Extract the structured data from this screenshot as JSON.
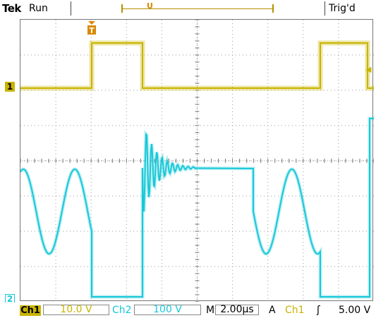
{
  "header": {
    "brand": "Tek",
    "run_state": "Run",
    "trigger_position_marker": "U",
    "trigger_state": "Trig'd"
  },
  "channels": {
    "ch1": {
      "marker": "1",
      "color": "#c8b400",
      "label": "Ch1",
      "scale": "10.0 V"
    },
    "ch2": {
      "marker": "2",
      "color": "#18c8d8",
      "label": "Ch2",
      "scale": "100 V"
    }
  },
  "trigger": {
    "marker": "T",
    "mode_label": "A",
    "source": "Ch1",
    "edge_icon": "rising-edge-icon",
    "edge_glyph": "ʃ",
    "level": "5.00 V"
  },
  "timebase": {
    "label": "M",
    "scale": "2.00µs"
  },
  "graticule": {
    "divisions_x": 10,
    "divisions_y": 8
  }
}
